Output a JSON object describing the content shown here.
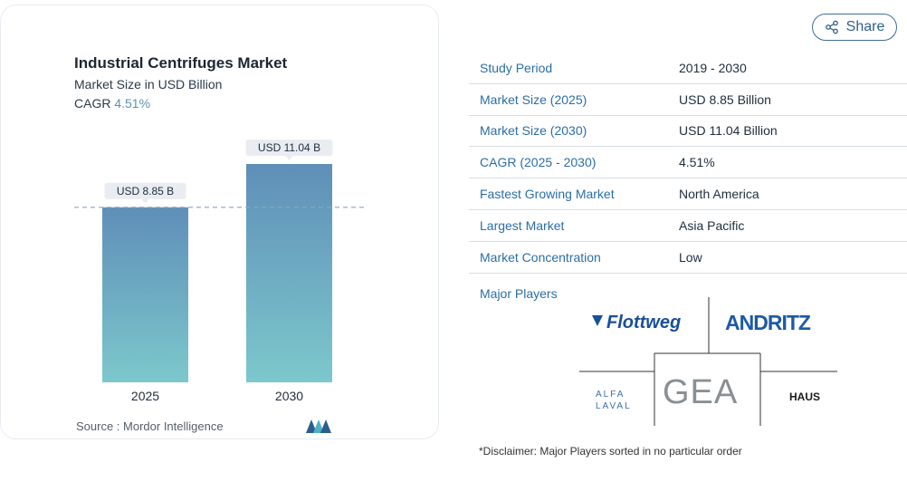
{
  "chart_data": {
    "type": "bar",
    "title": "Industrial Centrifuges Market",
    "subtitle": "Market Size in USD Billion",
    "cagr_label": "CAGR",
    "cagr_value": "4.51%",
    "categories": [
      "2025",
      "2030"
    ],
    "values": [
      8.85,
      11.04
    ],
    "data_labels": [
      "USD 8.85 B",
      "USD 11.04 B"
    ],
    "ylim": [
      0,
      11.04
    ],
    "source": "Source :  Mordor Intelligence",
    "colors": {
      "bar_top": "#5f8fb8",
      "bar_bottom": "#7cc8cc",
      "dashed": "#8aa6bf"
    }
  },
  "share": {
    "label": "Share",
    "icon": "share-icon"
  },
  "facts": [
    {
      "key": "Study Period",
      "value": "2019 - 2030"
    },
    {
      "key": "Market Size (2025)",
      "value": "USD 8.85 Billion"
    },
    {
      "key": "Market Size (2030)",
      "value": "USD 11.04 Billion"
    },
    {
      "key": "CAGR (2025 - 2030)",
      "value": "4.51%"
    },
    {
      "key": "Fastest Growing Market",
      "value": "North America"
    },
    {
      "key": "Largest Market",
      "value": "Asia Pacific"
    },
    {
      "key": "Market Concentration",
      "value": "Low"
    }
  ],
  "players": {
    "label": "Major Players",
    "logos": [
      "Flottweg",
      "ANDRITZ",
      "ALFA LAVAL",
      "GEA",
      "HAUS"
    ]
  },
  "disclaimer": "*Disclaimer: Major Players sorted in no particular order"
}
